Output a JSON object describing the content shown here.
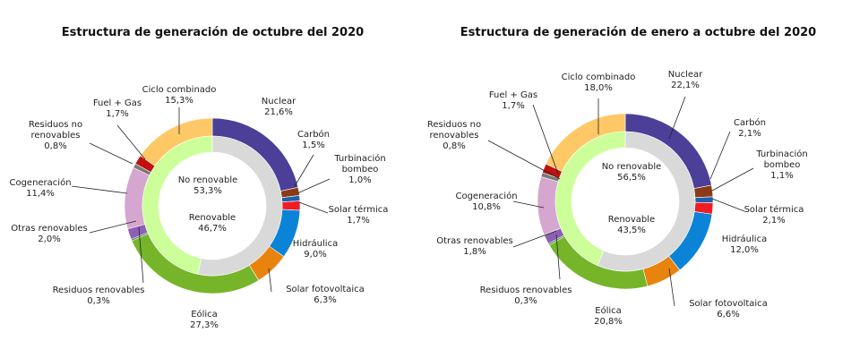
{
  "chart_data": [
    {
      "type": "pie",
      "title": "Estructura de generación de octubre del 2020",
      "inner_ring": [
        {
          "name": "No renovable",
          "value_label": "53,3%",
          "value": 53.3,
          "color": "#d9d9d9"
        },
        {
          "name": "Renovable",
          "value_label": "46,7%",
          "value": 46.7,
          "color": "#ccff99"
        }
      ],
      "outer_ring": [
        {
          "name": "Nuclear",
          "value_label": "21,6%",
          "value": 21.6,
          "color": "#4b3f98"
        },
        {
          "name": "Carbón",
          "value_label": "1,5%",
          "value": 1.5,
          "color": "#8b3a16"
        },
        {
          "name": "Turbinación bombeo",
          "value_label": "1,0%",
          "value": 1.0,
          "color": "#1f5fb0"
        },
        {
          "name": "Solar térmica",
          "value_label": "1,7%",
          "value": 1.7,
          "color": "#ee1c25"
        },
        {
          "name": "Hidráulica",
          "value_label": "9,0%",
          "value": 9.0,
          "color": "#0b84d8"
        },
        {
          "name": "Solar fotovoltaica",
          "value_label": "6,3%",
          "value": 6.3,
          "color": "#e8830d"
        },
        {
          "name": "Eólica",
          "value_label": "27,3%",
          "value": 27.3,
          "color": "#76b52a"
        },
        {
          "name": "Residuos renovables",
          "value_label": "0,3%",
          "value": 0.3,
          "color": "#2f8f3a"
        },
        {
          "name": "Otras renovables",
          "value_label": "2,0%",
          "value": 2.0,
          "color": "#8e5fb5"
        },
        {
          "name": "Cogeneración",
          "value_label": "11,4%",
          "value": 11.4,
          "color": "#d5a6cf"
        },
        {
          "name": "Residuos no renovables",
          "value_label": "0,8%",
          "value": 0.8,
          "color": "#7a7a7a"
        },
        {
          "name": "Fuel + Gas",
          "value_label": "1,7%",
          "value": 1.7,
          "color": "#c01010"
        },
        {
          "name": "Ciclo combinado",
          "value_label": "15,3%",
          "value": 15.3,
          "color": "#ffc866"
        }
      ]
    },
    {
      "type": "pie",
      "title": "Estructura de generación de enero a octubre del 2020",
      "inner_ring": [
        {
          "name": "No renovable",
          "value_label": "56,5%",
          "value": 56.5,
          "color": "#d9d9d9"
        },
        {
          "name": "Renovable",
          "value_label": "43,5%",
          "value": 43.5,
          "color": "#ccff99"
        }
      ],
      "outer_ring": [
        {
          "name": "Nuclear",
          "value_label": "22,1%",
          "value": 22.1,
          "color": "#4b3f98"
        },
        {
          "name": "Carbón",
          "value_label": "2,1%",
          "value": 2.1,
          "color": "#8b3a16"
        },
        {
          "name": "Turbinación bombeo",
          "value_label": "1,1%",
          "value": 1.1,
          "color": "#1f5fb0"
        },
        {
          "name": "Solar térmica",
          "value_label": "2,1%",
          "value": 2.1,
          "color": "#ee1c25"
        },
        {
          "name": "Hidráulica",
          "value_label": "12,0%",
          "value": 12.0,
          "color": "#0b84d8"
        },
        {
          "name": "Solar fotovoltaica",
          "value_label": "6,6%",
          "value": 6.6,
          "color": "#e8830d"
        },
        {
          "name": "Eólica",
          "value_label": "20,8%",
          "value": 20.8,
          "color": "#76b52a"
        },
        {
          "name": "Residuos renovables",
          "value_label": "0,3%",
          "value": 0.3,
          "color": "#2f8f3a"
        },
        {
          "name": "Otras renovables",
          "value_label": "1,8%",
          "value": 1.8,
          "color": "#8e5fb5"
        },
        {
          "name": "Cogeneración",
          "value_label": "10,8%",
          "value": 10.8,
          "color": "#d5a6cf"
        },
        {
          "name": "Residuos no renovables",
          "value_label": "0,8%",
          "value": 0.8,
          "color": "#7a7a7a"
        },
        {
          "name": "Fuel + Gas",
          "value_label": "1,7%",
          "value": 1.7,
          "color": "#c01010"
        },
        {
          "name": "Ciclo combinado",
          "value_label": "18,0%",
          "value": 18.0,
          "color": "#ffc866"
        }
      ]
    }
  ]
}
